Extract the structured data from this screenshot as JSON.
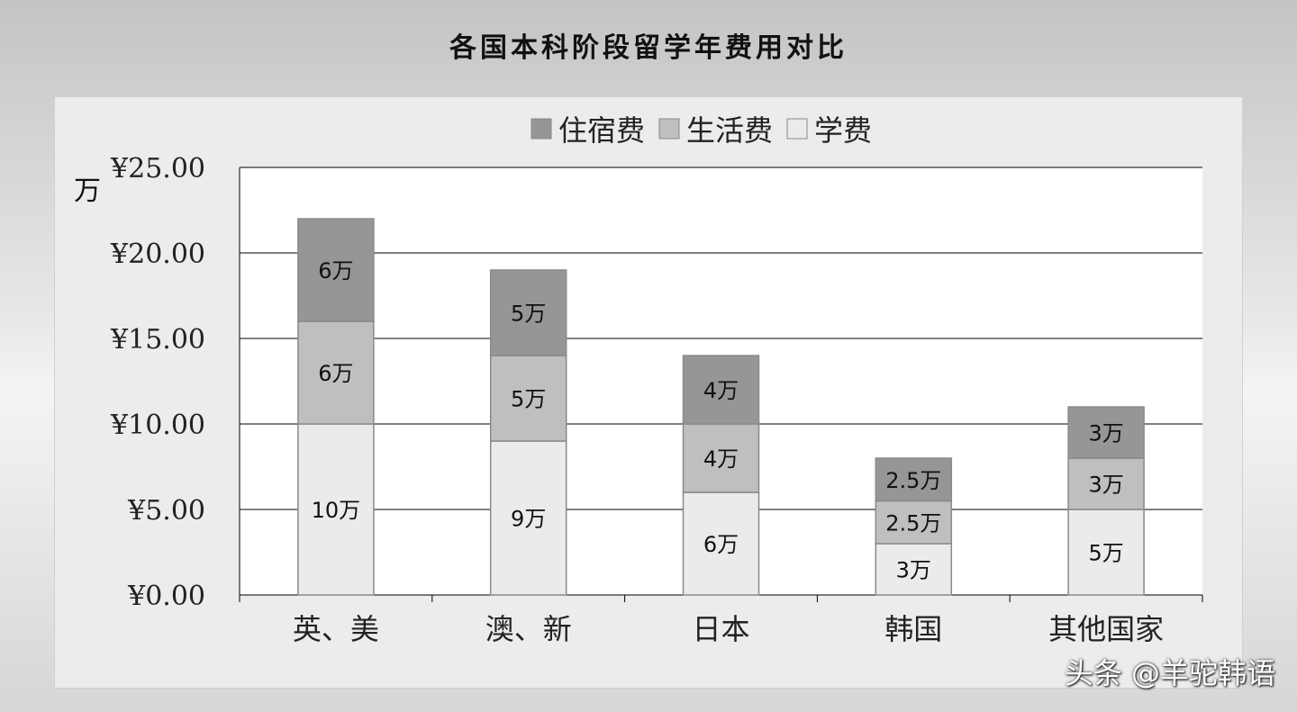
{
  "chart_data": {
    "type": "bar",
    "stacked": true,
    "title": "各国本科阶段留学年费用对比",
    "ylabel": "万",
    "ylim": [
      0,
      25
    ],
    "yticks": [
      "¥0.00",
      "¥5.00",
      "¥10.00",
      "¥15.00",
      "¥20.00",
      "¥25.00"
    ],
    "ytick_values": [
      0,
      5,
      10,
      15,
      20,
      25
    ],
    "grid": true,
    "legend_position": "top",
    "categories": [
      "英、美",
      "澳、新",
      "日本",
      "韩国",
      "其他国家"
    ],
    "series": [
      {
        "name": "学费",
        "color": "#ebebeb",
        "values": [
          10,
          9,
          6,
          3,
          5
        ],
        "labels": [
          "10万",
          "9万",
          "6万",
          "3万",
          "5万"
        ]
      },
      {
        "name": "生活费",
        "color": "#bfbfbf",
        "values": [
          6,
          5,
          4,
          2.5,
          3
        ],
        "labels": [
          "6万",
          "5万",
          "4万",
          "2.5万",
          "3万"
        ]
      },
      {
        "name": "住宿费",
        "color": "#969696",
        "values": [
          6,
          5,
          4,
          2.5,
          3
        ],
        "labels": [
          "6万",
          "5万",
          "4万",
          "2.5万",
          "3万"
        ]
      }
    ],
    "legend_order": [
      "住宿费",
      "生活费",
      "学费"
    ]
  },
  "watermark": "头条 @羊驼韩语"
}
